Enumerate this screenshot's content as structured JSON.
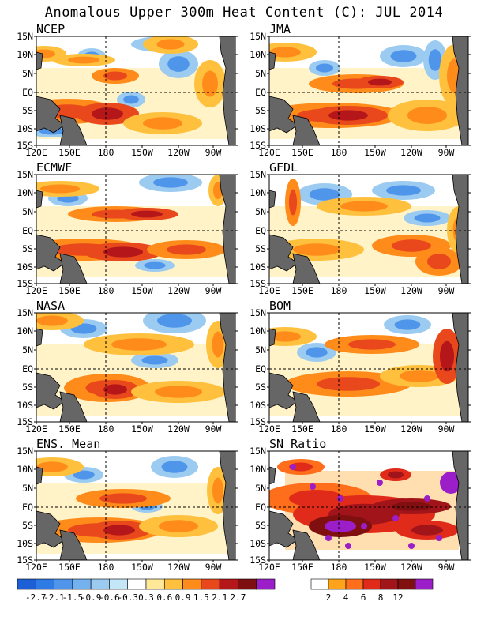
{
  "title": "Anomalous Upper 300m Heat Content (C): JUL 2014",
  "axes": {
    "lat_ticks": [
      "15N",
      "10N",
      "5N",
      "EQ",
      "5S",
      "10S",
      "15S"
    ],
    "lon_ticks": [
      "120E",
      "150E",
      "180",
      "150W",
      "120W",
      "90W"
    ]
  },
  "panels": [
    {
      "label": "NCEP"
    },
    {
      "label": "JMA"
    },
    {
      "label": "ECMWF"
    },
    {
      "label": "GFDL"
    },
    {
      "label": "NASA"
    },
    {
      "label": "BOM"
    },
    {
      "label": "ENS. Mean"
    },
    {
      "label": "SN Ratio"
    }
  ],
  "colorbar_anomaly": {
    "labels": [
      "-2.7",
      "-2.1",
      "-1.5",
      "-0.9",
      "-0.6",
      "-0.3",
      "0.3",
      "0.6",
      "0.9",
      "1.5",
      "2.1",
      "2.7"
    ],
    "colors": [
      "#1c5fd6",
      "#2f7be6",
      "#4f96ea",
      "#74b1ef",
      "#9ccbf2",
      "#c4e6f7",
      "#ffffff",
      "#ffe999",
      "#ffc13d",
      "#ff8c1a",
      "#e8481c",
      "#b4161a",
      "#7e0f10",
      "#9b1ec9"
    ]
  },
  "colorbar_snr": {
    "labels": [
      "2",
      "4",
      "6",
      "8",
      "12"
    ],
    "colors": [
      "#ffffff",
      "#ffa31a",
      "#ff6e1a",
      "#e02a1a",
      "#a0141a",
      "#800f10",
      "#9b1ec9"
    ]
  }
}
